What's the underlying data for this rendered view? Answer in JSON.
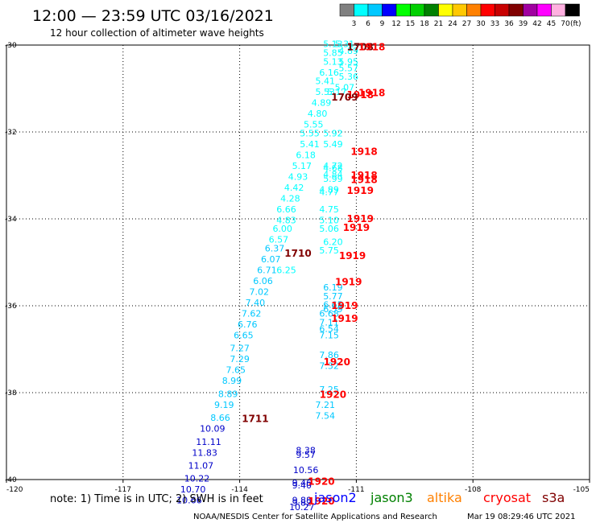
{
  "header": {
    "title": "12:00 — 23:59 UTC 03/16/2021",
    "subtitle": "12 hour collection of altimeter wave heights"
  },
  "colorbar": {
    "labels": [
      "3",
      "6",
      "9",
      "12",
      "15",
      "18",
      "21",
      "24",
      "27",
      "30",
      "33",
      "36",
      "39",
      "42",
      "45",
      "70"
    ],
    "unit": "(ft)",
    "colors": [
      "#808080",
      "#00ffff",
      "#00c8ff",
      "#0000ff",
      "#00ff00",
      "#00d000",
      "#008000",
      "#ffff00",
      "#ffc800",
      "#ff8000",
      "#ff0000",
      "#c80000",
      "#800000",
      "#a000a0",
      "#ff00ff",
      "#ffb0e0",
      "#000000"
    ]
  },
  "footer": {
    "note": "note:  1) Time is in UTC;  2) SWH is in feet",
    "satellites": [
      {
        "name": "jason2",
        "color": "#0000ff"
      },
      {
        "name": "jason3",
        "color": "#008000"
      },
      {
        "name": "altika",
        "color": "#ff8000"
      },
      {
        "name": "cryosat",
        "color": "#ff0000"
      },
      {
        "name": "s3a",
        "color": "#800000"
      }
    ],
    "credit": "NOAA/NESDIS Center for Satellite Applications and Research",
    "timestamp": "Mar 19 08:29:46 UTC 2021"
  },
  "chart_data": {
    "type": "scatter",
    "xlim": [
      -120,
      -105
    ],
    "ylim": [
      -40,
      -30
    ],
    "xticks": [
      "-120",
      "-117",
      "-114",
      "-111",
      "-108",
      "-105"
    ],
    "yticks": [
      "-30",
      "-32",
      "-34",
      "-36",
      "-38",
      "-40"
    ],
    "grid": true,
    "series": [
      {
        "color": "#00ffff",
        "values": [
          {
            "x": -111.6,
            "y": -30.05,
            "v": "5.13"
          },
          {
            "x": -111.3,
            "y": -30.05,
            "v": "5.31"
          },
          {
            "x": -111.2,
            "y": -30.2,
            "v": "4.89"
          },
          {
            "x": -111.6,
            "y": -30.25,
            "v": "5.85"
          },
          {
            "x": -111.6,
            "y": -30.45,
            "v": "5.13"
          },
          {
            "x": -111.2,
            "y": -30.45,
            "v": "5.95"
          },
          {
            "x": -111.2,
            "y": -30.6,
            "v": "5.57"
          },
          {
            "x": -111.7,
            "y": -30.7,
            "v": "6.16"
          },
          {
            "x": -111.2,
            "y": -30.8,
            "v": "5.36"
          },
          {
            "x": -111.8,
            "y": -30.9,
            "v": "5.41"
          },
          {
            "x": -111.3,
            "y": -31.05,
            "v": "5.07"
          },
          {
            "x": -111.8,
            "y": -31.15,
            "v": "5.53"
          },
          {
            "x": -111.5,
            "y": -31.15,
            "v": "5.17"
          },
          {
            "x": -111.9,
            "y": -31.4,
            "v": "4.89"
          },
          {
            "x": -112.0,
            "y": -31.65,
            "v": "4.80"
          },
          {
            "x": -112.1,
            "y": -31.9,
            "v": "5.55"
          },
          {
            "x": -112.2,
            "y": -32.1,
            "v": "5.55"
          },
          {
            "x": -111.6,
            "y": -32.1,
            "v": "5.92"
          },
          {
            "x": -112.2,
            "y": -32.35,
            "v": "5.41"
          },
          {
            "x": -111.6,
            "y": -32.35,
            "v": "5.49"
          },
          {
            "x": -112.3,
            "y": -32.6,
            "v": "6.18"
          },
          {
            "x": -112.4,
            "y": -32.85,
            "v": "5.17"
          },
          {
            "x": -111.6,
            "y": -32.85,
            "v": "4.72"
          },
          {
            "x": -111.6,
            "y": -32.9,
            "v": "4.68"
          },
          {
            "x": -112.5,
            "y": -33.1,
            "v": "4.93"
          },
          {
            "x": -111.6,
            "y": -33.05,
            "v": "4.84"
          },
          {
            "x": -111.6,
            "y": -33.15,
            "v": "5.99"
          },
          {
            "x": -112.6,
            "y": -33.35,
            "v": "4.42"
          },
          {
            "x": -111.7,
            "y": -33.4,
            "v": "4.89"
          },
          {
            "x": -111.7,
            "y": -33.45,
            "v": "4.77"
          },
          {
            "x": -112.7,
            "y": -33.6,
            "v": "4.28"
          },
          {
            "x": -112.8,
            "y": -33.85,
            "v": "6.66"
          },
          {
            "x": -111.7,
            "y": -33.85,
            "v": "4.75"
          },
          {
            "x": -112.8,
            "y": -34.1,
            "v": "4.83"
          },
          {
            "x": -111.7,
            "y": -34.1,
            "v": "5.10"
          },
          {
            "x": -112.9,
            "y": -34.3,
            "v": "6.00"
          },
          {
            "x": -111.7,
            "y": -34.3,
            "v": "5.06"
          },
          {
            "x": -113.0,
            "y": -34.55,
            "v": "6.57"
          },
          {
            "x": -111.6,
            "y": -34.6,
            "v": "6.20"
          },
          {
            "x": -111.7,
            "y": -34.8,
            "v": "5.75"
          },
          {
            "x": -112.8,
            "y": -35.25,
            "v": "6.25"
          }
        ]
      },
      {
        "color": "#00c8ff",
        "values": [
          {
            "x": -113.1,
            "y": -34.75,
            "v": "6.37"
          },
          {
            "x": -113.2,
            "y": -35.0,
            "v": "6.07"
          },
          {
            "x": -113.3,
            "y": -35.25,
            "v": "6.71"
          },
          {
            "x": -113.4,
            "y": -35.5,
            "v": "6.06"
          },
          {
            "x": -113.5,
            "y": -35.75,
            "v": "7.02"
          },
          {
            "x": -111.6,
            "y": -35.65,
            "v": "6.19"
          },
          {
            "x": -111.6,
            "y": -35.85,
            "v": "5.77"
          },
          {
            "x": -113.6,
            "y": -36.0,
            "v": "7.40"
          },
          {
            "x": -111.6,
            "y": -36.05,
            "v": "6.65"
          },
          {
            "x": -111.6,
            "y": -36.15,
            "v": "6.59"
          },
          {
            "x": -113.7,
            "y": -36.25,
            "v": "7.62"
          },
          {
            "x": -111.7,
            "y": -36.25,
            "v": "6.68"
          },
          {
            "x": -113.8,
            "y": -36.5,
            "v": "6.76"
          },
          {
            "x": -111.7,
            "y": -36.45,
            "v": "7.11"
          },
          {
            "x": -113.9,
            "y": -36.75,
            "v": "6.65"
          },
          {
            "x": -111.7,
            "y": -36.6,
            "v": "6.54"
          },
          {
            "x": -111.7,
            "y": -36.75,
            "v": "7.15"
          },
          {
            "x": -114.0,
            "y": -37.05,
            "v": "7.27"
          },
          {
            "x": -114.0,
            "y": -37.3,
            "v": "7.29"
          },
          {
            "x": -111.7,
            "y": -37.2,
            "v": "7.86"
          },
          {
            "x": -114.1,
            "y": -37.55,
            "v": "7.65"
          },
          {
            "x": -111.7,
            "y": -37.45,
            "v": "7.32"
          },
          {
            "x": -114.2,
            "y": -37.8,
            "v": "8.99"
          },
          {
            "x": -114.3,
            "y": -38.1,
            "v": "8.89"
          },
          {
            "x": -111.7,
            "y": -38.0,
            "v": "7.25"
          },
          {
            "x": -114.4,
            "y": -38.35,
            "v": "9.19"
          },
          {
            "x": -111.8,
            "y": -38.35,
            "v": "7.21"
          },
          {
            "x": -114.5,
            "y": -38.65,
            "v": "8.66"
          },
          {
            "x": -111.8,
            "y": -38.6,
            "v": "7.54"
          }
        ]
      },
      {
        "color": "#0000c8",
        "values": [
          {
            "x": -114.7,
            "y": -38.9,
            "v": "10.09"
          },
          {
            "x": -114.8,
            "y": -39.2,
            "v": "11.11"
          },
          {
            "x": -112.3,
            "y": -39.4,
            "v": "8.38"
          },
          {
            "x": -114.9,
            "y": -39.45,
            "v": "11.83"
          },
          {
            "x": -112.3,
            "y": -39.5,
            "v": "9.57"
          },
          {
            "x": -115.0,
            "y": -39.75,
            "v": "11.07"
          },
          {
            "x": -112.3,
            "y": -39.85,
            "v": "10.56"
          },
          {
            "x": -115.1,
            "y": -40.05,
            "v": "10.22"
          },
          {
            "x": -112.4,
            "y": -40.15,
            "v": "9.46"
          },
          {
            "x": -112.4,
            "y": -40.2,
            "v": "9.40"
          },
          {
            "x": -115.2,
            "y": -40.3,
            "v": "10.70"
          },
          {
            "x": -112.4,
            "y": -40.55,
            "v": "9.88"
          },
          {
            "x": -112.4,
            "y": -40.6,
            "v": "9.82"
          },
          {
            "x": -115.3,
            "y": -40.55,
            "v": "10.66"
          },
          {
            "x": -112.4,
            "y": -40.7,
            "v": "10.27"
          }
        ]
      }
    ],
    "pass_labels": [
      {
        "x": -110.9,
        "y": -30.05,
        "v": "1708",
        "color": "#800000"
      },
      {
        "x": -110.6,
        "y": -30.05,
        "v": "1918",
        "color": "#ff0000"
      },
      {
        "x": -110.6,
        "y": -31.1,
        "v": "1918",
        "color": "#ff0000"
      },
      {
        "x": -110.9,
        "y": -31.15,
        "v": "1918",
        "color": "#ff0000"
      },
      {
        "x": -111.3,
        "y": -31.2,
        "v": "1709",
        "color": "#800000"
      },
      {
        "x": -110.8,
        "y": -32.45,
        "v": "1918",
        "color": "#ff0000"
      },
      {
        "x": -110.8,
        "y": -33.0,
        "v": "1918",
        "color": "#ff0000"
      },
      {
        "x": -110.8,
        "y": -33.1,
        "v": "1918",
        "color": "#ff0000"
      },
      {
        "x": -110.9,
        "y": -33.35,
        "v": "1919",
        "color": "#ff0000"
      },
      {
        "x": -110.9,
        "y": -34.0,
        "v": "1919",
        "color": "#ff0000"
      },
      {
        "x": -111.0,
        "y": -34.2,
        "v": "1919",
        "color": "#ff0000"
      },
      {
        "x": -112.5,
        "y": -34.8,
        "v": "1710",
        "color": "#800000"
      },
      {
        "x": -111.1,
        "y": -34.85,
        "v": "1919",
        "color": "#ff0000"
      },
      {
        "x": -111.2,
        "y": -35.45,
        "v": "1919",
        "color": "#ff0000"
      },
      {
        "x": -111.3,
        "y": -36.0,
        "v": "1919",
        "color": "#ff0000"
      },
      {
        "x": -111.3,
        "y": -36.3,
        "v": "1919",
        "color": "#ff0000"
      },
      {
        "x": -111.5,
        "y": -37.3,
        "v": "1920",
        "color": "#ff0000"
      },
      {
        "x": -111.6,
        "y": -38.05,
        "v": "1920",
        "color": "#ff0000"
      },
      {
        "x": -113.6,
        "y": -38.6,
        "v": "1711",
        "color": "#800000"
      },
      {
        "x": -111.9,
        "y": -40.05,
        "v": "1920",
        "color": "#ff0000"
      },
      {
        "x": -111.9,
        "y": -40.5,
        "v": "1920",
        "color": "#ff0000"
      }
    ]
  }
}
